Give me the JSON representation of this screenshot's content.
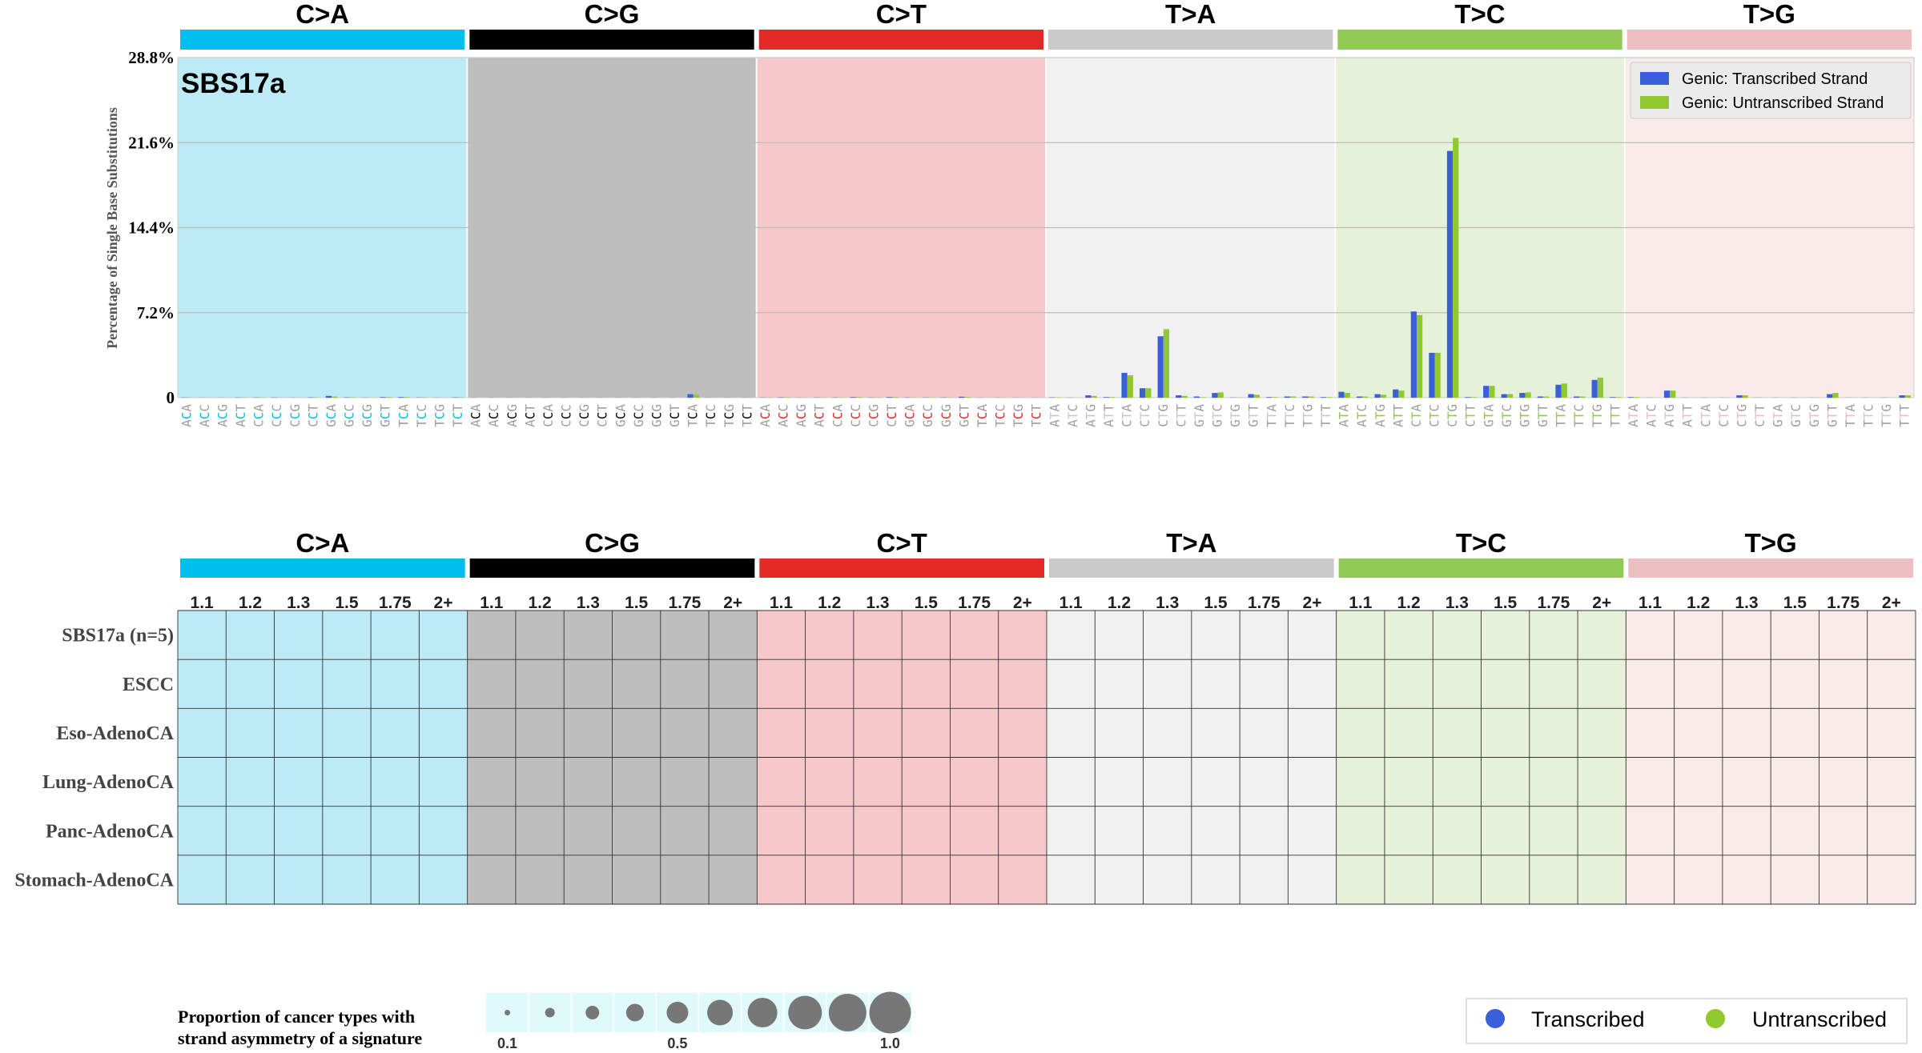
{
  "chart_data": [
    {
      "type": "bar",
      "title": "SBS17a",
      "ylabel": "Percentage of Single Base Substitutions",
      "ylim": [
        0,
        28.8
      ],
      "yticks": [
        "0",
        "7.2%",
        "14.4%",
        "21.6%",
        "28.8%"
      ],
      "grid": true,
      "legend_position": "top-right",
      "mutation_types": [
        "C>A",
        "C>G",
        "C>T",
        "T>A",
        "T>C",
        "T>G"
      ],
      "categories": [
        "ACA",
        "ACC",
        "ACG",
        "ACT",
        "CCA",
        "CCC",
        "CCG",
        "CCT",
        "GCA",
        "GCC",
        "GCG",
        "GCT",
        "TCA",
        "TCC",
        "TCG",
        "TCT",
        "ACA",
        "ACC",
        "ACG",
        "ACT",
        "CCA",
        "CCC",
        "CCG",
        "CCT",
        "GCA",
        "GCC",
        "GCG",
        "GCT",
        "TCA",
        "TCC",
        "TCG",
        "TCT",
        "ACA",
        "ACC",
        "ACG",
        "ACT",
        "CCA",
        "CCC",
        "CCG",
        "CCT",
        "GCA",
        "GCC",
        "GCG",
        "GCT",
        "TCA",
        "TCC",
        "TCG",
        "TCT",
        "ATA",
        "ATC",
        "ATG",
        "ATT",
        "CTA",
        "CTC",
        "CTG",
        "CTT",
        "GTA",
        "GTC",
        "GTG",
        "GTT",
        "TTA",
        "TTC",
        "TTG",
        "TTT",
        "ATA",
        "ATC",
        "ATG",
        "ATT",
        "CTA",
        "CTC",
        "CTG",
        "CTT",
        "GTA",
        "GTC",
        "GTG",
        "GTT",
        "TTA",
        "TTC",
        "TTG",
        "TTT",
        "ATA",
        "ATC",
        "ATG",
        "ATT",
        "CTA",
        "CTC",
        "CTG",
        "CTT",
        "GTA",
        "GTC",
        "GTG",
        "GTT",
        "TTA",
        "TTC",
        "TTG",
        "TTT"
      ],
      "series": [
        {
          "name": "Genic: Transcribed Strand",
          "values": [
            0.02,
            0.01,
            0.01,
            0.02,
            0.02,
            0.02,
            0.01,
            0.03,
            0.15,
            0.03,
            0.01,
            0.05,
            0.05,
            0.02,
            0.01,
            0.03,
            0.01,
            0.01,
            0.01,
            0.01,
            0.01,
            0.01,
            0.01,
            0.01,
            0.01,
            0.01,
            0.01,
            0.01,
            0.3,
            0.01,
            0.01,
            0.01,
            0.02,
            0.03,
            0.01,
            0.02,
            0.02,
            0.05,
            0.02,
            0.05,
            0.02,
            0.02,
            0.02,
            0.08,
            0.01,
            0.01,
            0.01,
            0.01,
            0.03,
            0.01,
            0.2,
            0.05,
            2.1,
            0.8,
            5.2,
            0.2,
            0.1,
            0.4,
            0.02,
            0.3,
            0.05,
            0.1,
            0.1,
            0.05,
            0.5,
            0.1,
            0.3,
            0.7,
            7.3,
            3.8,
            20.9,
            0.05,
            1.0,
            0.3,
            0.4,
            0.1,
            1.1,
            0.1,
            1.5,
            0.05,
            0.05,
            0.01,
            0.6,
            0.01,
            0.01,
            0.01,
            0.2,
            0.01,
            0.01,
            0.01,
            0.01,
            0.3,
            0.01,
            0.01,
            0.01,
            0.2
          ]
        },
        {
          "name": "Genic: Untranscribed Strand",
          "values": [
            0.02,
            0.01,
            0.01,
            0.02,
            0.02,
            0.02,
            0.01,
            0.03,
            0.1,
            0.03,
            0.01,
            0.05,
            0.05,
            0.02,
            0.01,
            0.03,
            0.01,
            0.01,
            0.01,
            0.01,
            0.01,
            0.01,
            0.01,
            0.01,
            0.01,
            0.01,
            0.01,
            0.01,
            0.25,
            0.01,
            0.01,
            0.01,
            0.02,
            0.03,
            0.01,
            0.02,
            0.02,
            0.05,
            0.02,
            0.05,
            0.02,
            0.02,
            0.02,
            0.05,
            0.01,
            0.01,
            0.01,
            0.01,
            0.03,
            0.01,
            0.15,
            0.05,
            1.9,
            0.8,
            5.8,
            0.15,
            0.05,
            0.45,
            0.02,
            0.25,
            0.05,
            0.1,
            0.1,
            0.05,
            0.4,
            0.1,
            0.25,
            0.6,
            7.0,
            3.8,
            22.0,
            0.05,
            1.0,
            0.3,
            0.45,
            0.1,
            1.2,
            0.1,
            1.7,
            0.05,
            0.05,
            0.01,
            0.6,
            0.01,
            0.01,
            0.01,
            0.2,
            0.01,
            0.01,
            0.01,
            0.01,
            0.4,
            0.01,
            0.01,
            0.01,
            0.2
          ]
        }
      ]
    },
    {
      "type": "heatmap",
      "mutation_types": [
        "C>A",
        "C>G",
        "C>T",
        "T>A",
        "T>C",
        "T>G"
      ],
      "columns": [
        "1.1",
        "1.2",
        "1.3",
        "1.5",
        "1.75",
        "2+"
      ],
      "rows": [
        "SBS17a (n=5)",
        "ESCC",
        "Eso-AdenoCA",
        "Lung-AdenoCA",
        "Panc-AdenoCA",
        "Stomach-AdenoCA"
      ]
    }
  ],
  "type_colors": [
    "#00bfee",
    "#000000",
    "#e32926",
    "#c9c9c9",
    "#8fca52",
    "#edbfc2"
  ],
  "band_colors": [
    "#bdebf5",
    "#bebebe",
    "#f7c8ca",
    "#f1f1f1",
    "#e5f2d9",
    "#f9ebea"
  ],
  "strand_colors": {
    "transcribed": "#3b5fdb",
    "untranscribed": "#90c92e"
  },
  "size_legend": {
    "label_line1": "Proportion of cancer types with",
    "label_line2": "strand asymmetry of a signature",
    "ticks": [
      "0.1",
      "0.5",
      "1.0"
    ]
  },
  "strand_legend": {
    "transcribed": "Transcribed",
    "untranscribed": "Untranscribed"
  }
}
